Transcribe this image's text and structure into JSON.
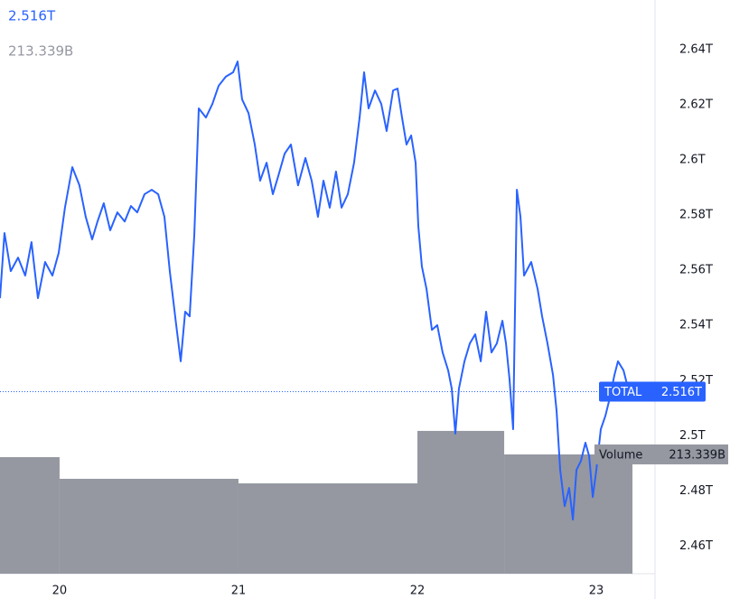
{
  "chart_data": {
    "type": "line",
    "series": [
      {
        "name": "TOTAL",
        "color": "#2962ff",
        "last_label": "2.516T",
        "x": [
          19.667,
          19.692,
          19.727,
          19.768,
          19.808,
          19.843,
          19.879,
          19.919,
          19.96,
          19.995,
          20.03,
          20.071,
          20.111,
          20.146,
          20.182,
          20.212,
          20.247,
          20.283,
          20.323,
          20.364,
          20.399,
          20.434,
          20.475,
          20.515,
          20.551,
          20.586,
          20.616,
          20.652,
          20.677,
          20.702,
          20.727,
          20.753,
          20.778,
          20.818,
          20.854,
          20.889,
          20.929,
          20.97,
          20.995,
          21.02,
          21.056,
          21.091,
          21.121,
          21.157,
          21.192,
          21.222,
          21.258,
          21.293,
          21.333,
          21.374,
          21.409,
          21.444,
          21.475,
          21.51,
          21.545,
          21.576,
          21.611,
          21.646,
          21.677,
          21.702,
          21.727,
          21.763,
          21.798,
          21.828,
          21.864,
          21.889,
          21.914,
          21.939,
          21.965,
          21.99,
          22.005,
          22.025,
          22.051,
          22.081,
          22.111,
          22.141,
          22.172,
          22.192,
          22.212,
          22.232,
          22.263,
          22.293,
          22.323,
          22.354,
          22.384,
          22.414,
          22.444,
          22.475,
          22.495,
          22.515,
          22.535,
          22.556,
          22.576,
          22.596,
          22.636,
          22.672,
          22.697,
          22.727,
          22.758,
          22.778,
          22.798,
          22.823,
          22.848,
          22.869,
          22.889,
          22.914,
          22.939,
          22.96,
          22.98,
          23.0,
          23.025,
          23.051,
          23.076,
          23.101,
          23.121,
          23.152,
          23.182
        ],
        "values": [
          2.5499,
          2.5735,
          2.5597,
          2.5646,
          2.5581,
          2.5702,
          2.5499,
          2.563,
          2.5581,
          2.5663,
          2.5827,
          2.5974,
          2.5908,
          2.5794,
          2.5712,
          2.5777,
          2.5843,
          2.5745,
          2.581,
          2.5777,
          2.5833,
          2.581,
          2.5876,
          2.5892,
          2.5876,
          2.5794,
          2.5597,
          2.5401,
          2.527,
          2.545,
          2.5433,
          2.5728,
          2.6187,
          2.6154,
          2.6203,
          2.6269,
          2.6302,
          2.6318,
          2.6357,
          2.622,
          2.617,
          2.6056,
          2.5925,
          2.599,
          2.5876,
          2.5941,
          2.6023,
          2.6056,
          2.5908,
          2.6007,
          2.5925,
          2.5794,
          2.5925,
          2.5827,
          2.5958,
          2.5827,
          2.5876,
          2.599,
          2.6154,
          2.6318,
          2.6187,
          2.6252,
          2.6203,
          2.6105,
          2.6252,
          2.6259,
          2.6154,
          2.6056,
          2.6089,
          2.599,
          2.5761,
          2.5614,
          2.5532,
          2.5384,
          2.5401,
          2.5302,
          2.5237,
          2.5171,
          2.5008,
          2.5171,
          2.527,
          2.5335,
          2.5368,
          2.527,
          2.545,
          2.5302,
          2.5335,
          2.5417,
          2.5335,
          2.5204,
          2.5024,
          2.5892,
          2.5794,
          2.5581,
          2.563,
          2.5532,
          2.5433,
          2.5335,
          2.522,
          2.5089,
          2.4876,
          2.4745,
          2.4811,
          2.4696,
          2.4876,
          2.4909,
          2.4975,
          2.4926,
          2.4778,
          2.4876,
          2.5024,
          2.5073,
          2.5139,
          2.522,
          2.527,
          2.5237,
          2.516
        ]
      }
    ],
    "volume": {
      "name": "Volume",
      "color": "#9598a1",
      "last_label": "213.339B",
      "bins": [
        19.667,
        20,
        21,
        22,
        22.485,
        23.202
      ],
      "values": [
        208.5,
        169.7,
        161.6,
        255.4,
        213.339
      ],
      "ylim": [
        0,
        1026
      ]
    },
    "xlim": [
      19.667,
      23.328
    ],
    "xticks": [
      20,
      21,
      22,
      23
    ],
    "ylim": [
      2.45,
      2.658
    ],
    "yticks": [
      {
        "value": 2.46,
        "label": "2.46T"
      },
      {
        "value": 2.48,
        "label": "2.48T"
      },
      {
        "value": 2.5,
        "label": "2.5T"
      },
      {
        "value": 2.52,
        "label": "2.52T"
      },
      {
        "value": 2.54,
        "label": "2.54T"
      },
      {
        "value": 2.56,
        "label": "2.56T"
      },
      {
        "value": 2.58,
        "label": "2.58T"
      },
      {
        "value": 2.6,
        "label": "2.6T"
      },
      {
        "value": 2.62,
        "label": "2.62T"
      },
      {
        "value": 2.64,
        "label": "2.64T"
      }
    ]
  }
}
